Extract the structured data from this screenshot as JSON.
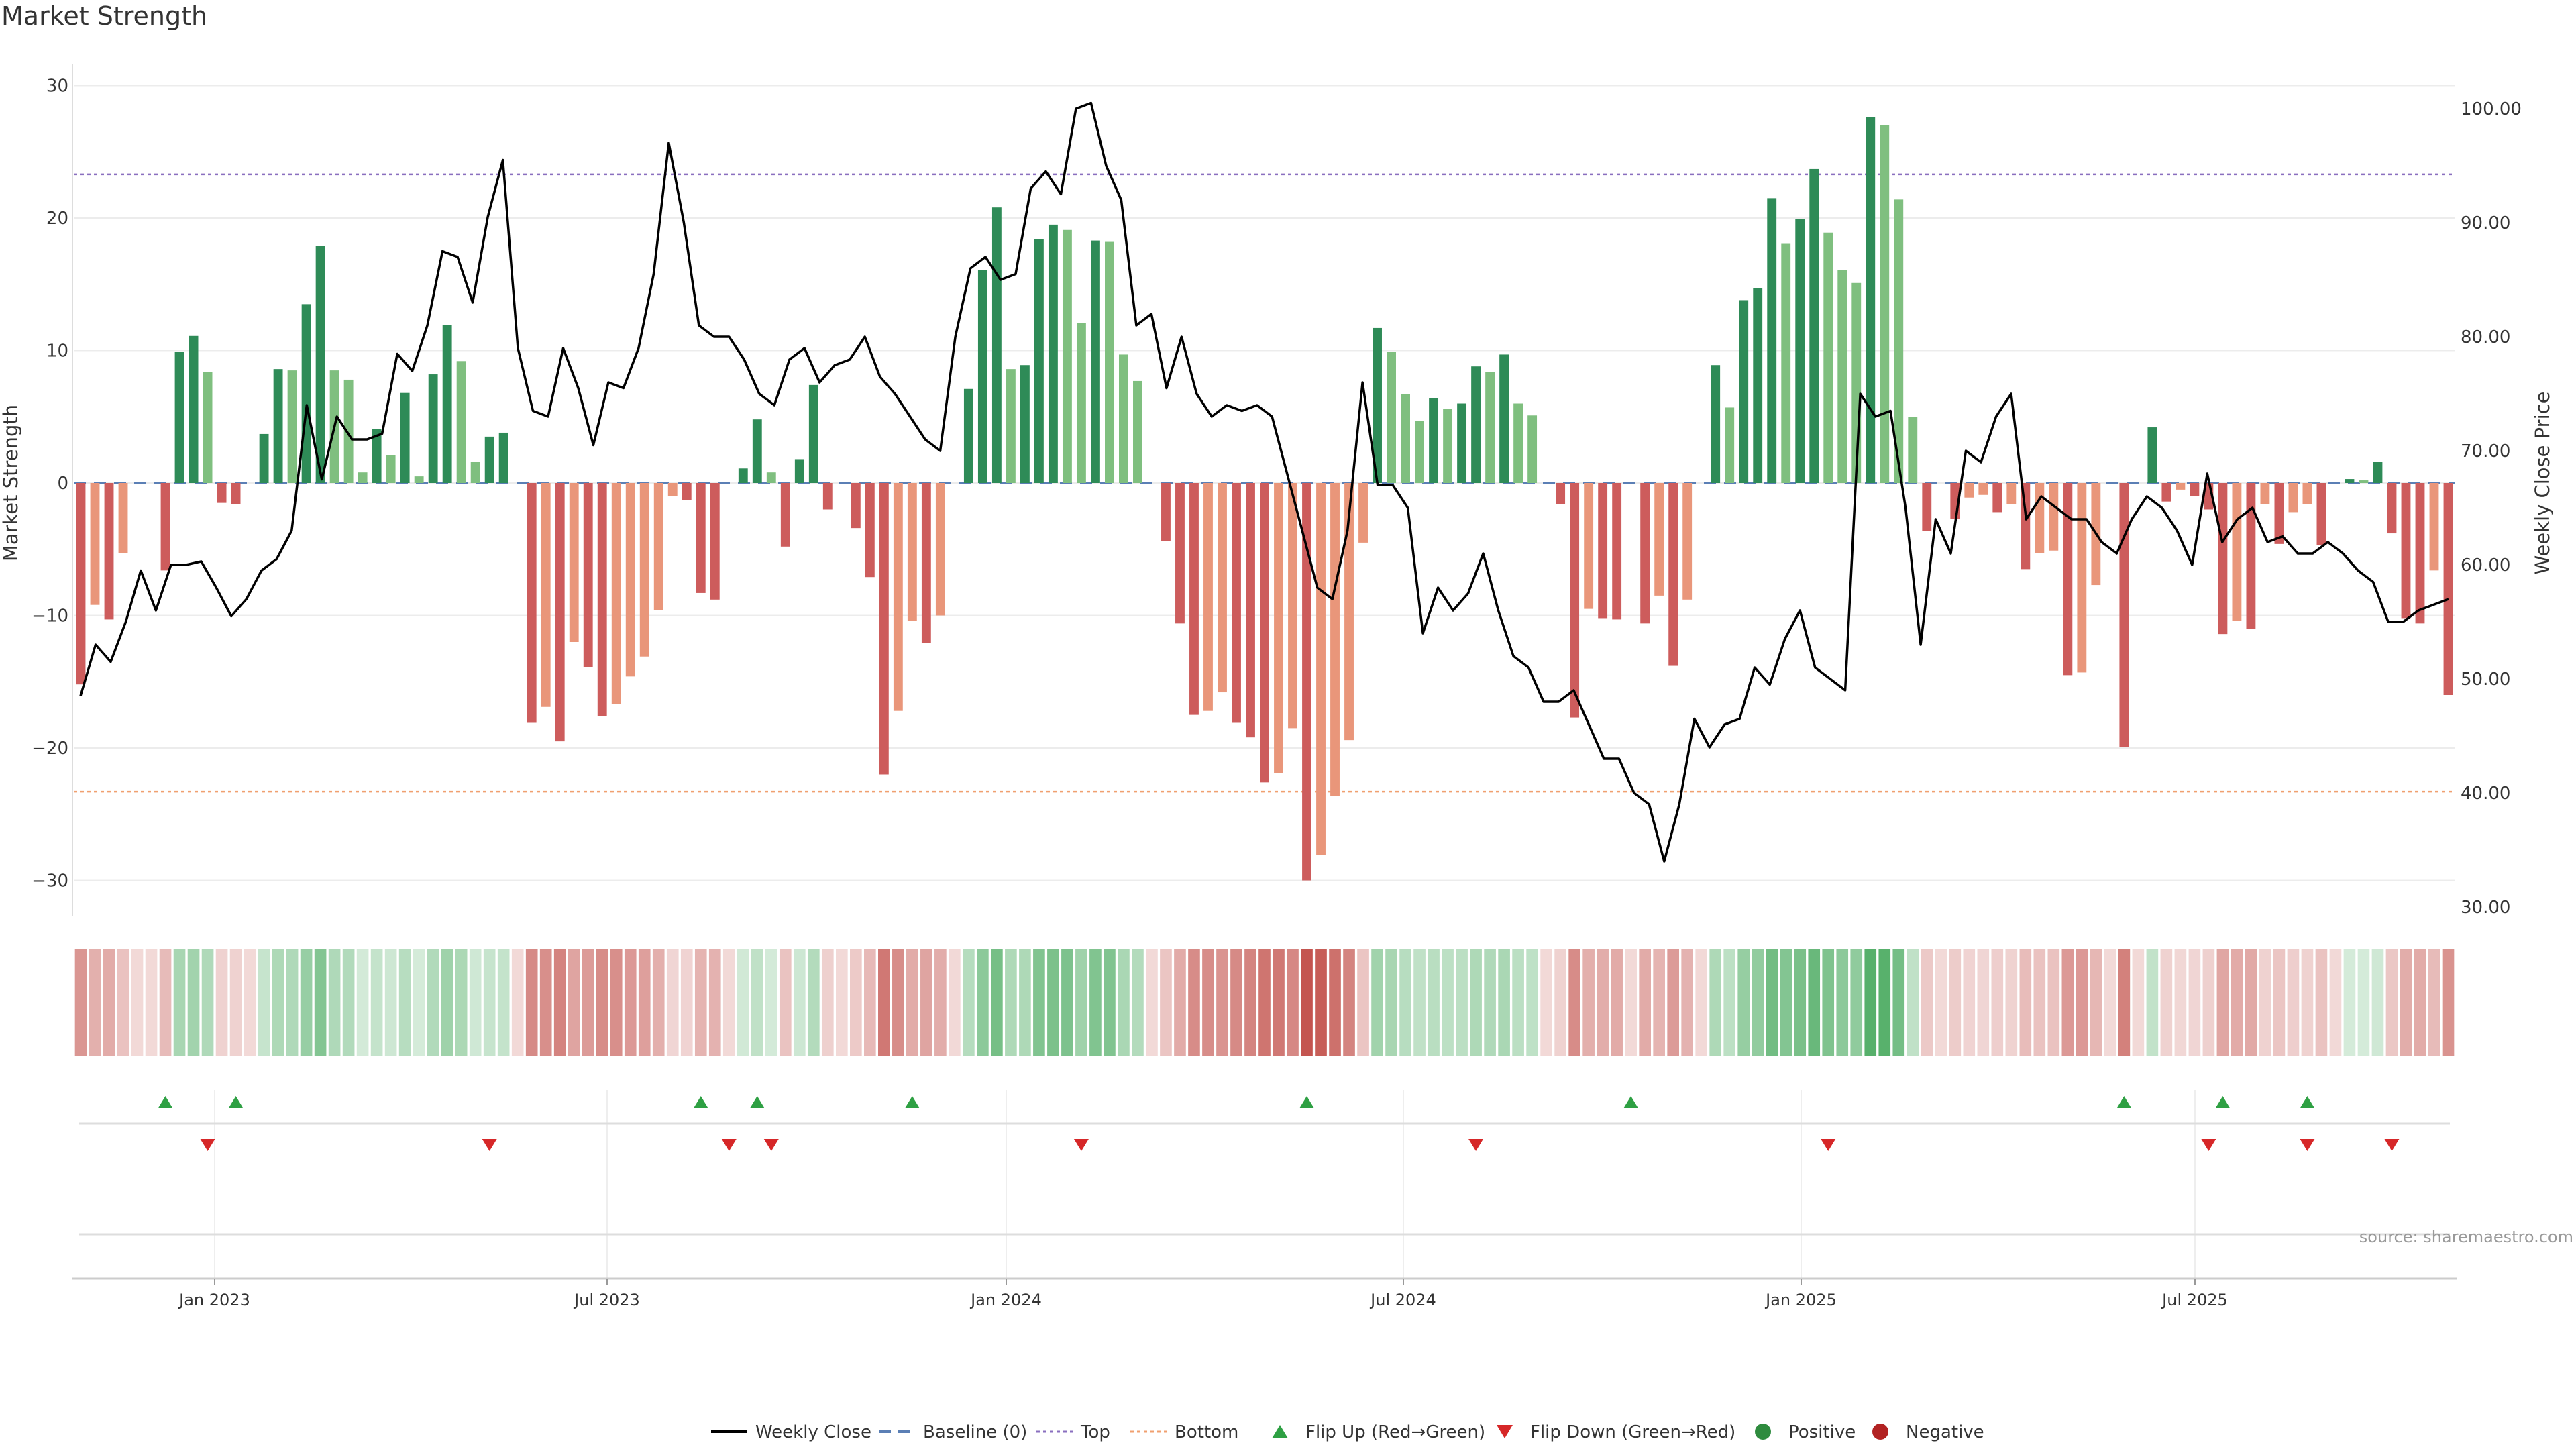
{
  "chart_data": {
    "type": "bar",
    "title": "Market Strength",
    "ylabel": "Market Strength",
    "y2label": "Weekly Close Price",
    "ylim": [
      -32,
      31
    ],
    "y2lim": [
      28,
      103.5
    ],
    "ticks_left": [
      "30",
      "20",
      "10",
      "0",
      "−10",
      "−20",
      "−30"
    ],
    "ticks_right": [
      "100.00",
      "90.00",
      "80.00",
      "70.00",
      "60.00",
      "50.00",
      "40.00",
      "30.00"
    ],
    "x_ticks": [
      "Jan 2023",
      "Jul 2023",
      "Jan 2024",
      "Jul 2024",
      "Jan 2025",
      "Jul 2025"
    ],
    "top_level": 23.3,
    "bottom_level": -23.3,
    "values": [
      -15.2,
      -9.2,
      -10.3,
      -5.3,
      0,
      0,
      -6.6,
      9.9,
      11.1,
      8.4,
      -1.5,
      -1.6,
      0,
      3.7,
      8.6,
      8.5,
      13.5,
      17.9,
      8.5,
      7.8,
      0.8,
      4.1,
      2.1,
      6.8,
      0.5,
      8.2,
      11.9,
      9.2,
      1.6,
      3.5,
      3.8,
      0,
      -18.1,
      -16.9,
      -19.5,
      -12.0,
      -13.9,
      -17.6,
      -16.7,
      -14.6,
      -13.1,
      -9.6,
      -1.0,
      -1.3,
      -8.3,
      -8.8,
      0,
      1.1,
      4.8,
      0.8,
      -4.8,
      1.8,
      7.4,
      -2.0,
      0,
      -3.4,
      -7.1,
      -22.0,
      -17.2,
      -10.4,
      -12.1,
      -10.0,
      0,
      7.1,
      16.1,
      20.8,
      8.6,
      8.9,
      18.4,
      19.5,
      19.1,
      12.1,
      18.3,
      18.2,
      9.7,
      7.7,
      0,
      -4.4,
      -10.6,
      -17.5,
      -17.2,
      -15.8,
      -18.1,
      -19.2,
      -22.6,
      -21.9,
      -18.5,
      -30.0,
      -28.1,
      -23.6,
      -19.4,
      -4.5,
      11.7,
      9.9,
      6.7,
      4.7,
      6.4,
      5.6,
      6.0,
      8.8,
      8.4,
      9.7,
      6.0,
      5.1,
      0,
      -1.6,
      -17.7,
      -9.5,
      -10.2,
      -10.3,
      0,
      -10.6,
      -8.5,
      -13.8,
      -8.8,
      0,
      8.9,
      5.7,
      13.8,
      14.7,
      21.5,
      18.1,
      19.9,
      23.7,
      18.9,
      16.1,
      15.1,
      27.6,
      27.0,
      21.4,
      5.0,
      -3.6,
      0,
      -2.7,
      -1.1,
      -0.9,
      -2.2,
      -1.6,
      -6.5,
      -5.3,
      -5.1,
      -14.5,
      -14.3,
      -7.7,
      0,
      -19.9,
      0,
      4.2,
      -1.4,
      -0.5,
      -1.0,
      -2.0,
      -11.4,
      -10.4,
      -11.0,
      -1.6,
      -4.6,
      -2.2,
      -1.6,
      -4.7,
      0,
      0.3,
      0.2,
      1.6,
      -3.8,
      -10.2,
      -10.6,
      -6.6,
      -16.0
    ],
    "series": [
      {
        "name": "Weekly Close",
        "values": [
          48.5,
          53.0,
          51.5,
          55.0,
          59.5,
          56.0,
          60.0,
          60.0,
          60.3,
          58.0,
          55.5,
          57.0,
          59.5,
          60.5,
          63.0,
          74.0,
          67.5,
          73.0,
          71.0,
          71.0,
          71.5,
          78.5,
          77.0,
          81.0,
          87.5,
          87.0,
          83.0,
          90.5,
          95.5,
          79.0,
          73.5,
          73.0,
          79.0,
          75.5,
          70.5,
          76.0,
          75.5,
          79.0,
          85.5,
          97.0,
          90.0,
          81.0,
          80.0,
          80.0,
          78.0,
          75.0,
          74.0,
          78.0,
          79.0,
          76.0,
          77.5,
          78.0,
          80.0,
          76.5,
          75.0,
          73.0,
          71.0,
          70.0,
          80.0,
          86.0,
          87.0,
          85.0,
          85.5,
          93.0,
          94.5,
          92.5,
          100.0,
          100.5,
          95.0,
          92.0,
          81.0,
          82.0,
          75.5,
          80.0,
          75.0,
          73.0,
          74.0,
          73.5,
          74.0,
          73.0,
          68.0,
          63.0,
          58.0,
          57.0,
          63.0,
          76.0,
          67.0,
          67.0,
          65.0,
          54.0,
          58.0,
          56.0,
          57.5,
          61.0,
          56.0,
          52.0,
          51.0,
          48.0,
          48.0,
          49.0,
          46.0,
          43.0,
          43.0,
          40.0,
          39.0,
          34.0,
          39.0,
          46.5,
          44.0,
          46.0,
          46.5,
          51.0,
          49.5,
          53.5,
          56.0,
          51.0,
          50.0,
          49.0,
          75.0,
          73.0,
          73.5,
          65.0,
          53.0,
          64.0,
          61.0,
          70.0,
          69.0,
          73.0,
          75.0,
          64.0,
          66.0,
          65.0,
          64.0,
          64.0,
          62.0,
          61.0,
          64.0,
          66.0,
          65.0,
          63.0,
          60.0,
          68.0,
          62.0,
          64.0,
          65.0,
          62.0,
          62.5,
          61.0,
          61.0,
          62.0,
          61.0,
          59.5,
          58.5,
          55.0,
          55.0,
          56.0,
          56.5,
          57.0
        ]
      },
      {
        "name": "Baseline (0)",
        "values": [
          0
        ]
      },
      {
        "name": "Top",
        "values": [
          23.3
        ]
      },
      {
        "name": "Bottom",
        "values": [
          -23.3
        ]
      }
    ],
    "flip_up_bars": [
      6,
      11,
      44,
      48,
      59,
      87,
      110,
      145,
      152,
      158
    ],
    "flip_down_bars": [
      9,
      29,
      46,
      49,
      71,
      99,
      124,
      151,
      158,
      164
    ],
    "legend": [
      {
        "label": "Weekly Close",
        "kind": "line",
        "color": "#000000"
      },
      {
        "label": "Baseline (0)",
        "kind": "dash",
        "color": "#5b7fb5"
      },
      {
        "label": "Top",
        "kind": "dot",
        "color": "#8a6fbf"
      },
      {
        "label": "Bottom",
        "kind": "dot",
        "color": "#f0a070"
      },
      {
        "label": "Flip Up (Red→Green)",
        "kind": "tri-up",
        "color": "#2ea043"
      },
      {
        "label": "Flip Down (Green→Red)",
        "kind": "tri-down",
        "color": "#d62728"
      },
      {
        "label": "Positive",
        "kind": "circle",
        "color": "#2e8b3e"
      },
      {
        "label": "Negative",
        "kind": "circle",
        "color": "#b22222"
      }
    ],
    "legend_position": "bottom-center",
    "source": "source: sharemaestro.com",
    "colors": {
      "pos_strong": "#2e8b57",
      "pos_weak": "#7fbf7f",
      "neg_strong": "#cd5c5c",
      "neg_weak": "#e9967a",
      "close": "#000000",
      "flip_up": "#2ea043",
      "flip_down": "#d62728"
    }
  }
}
